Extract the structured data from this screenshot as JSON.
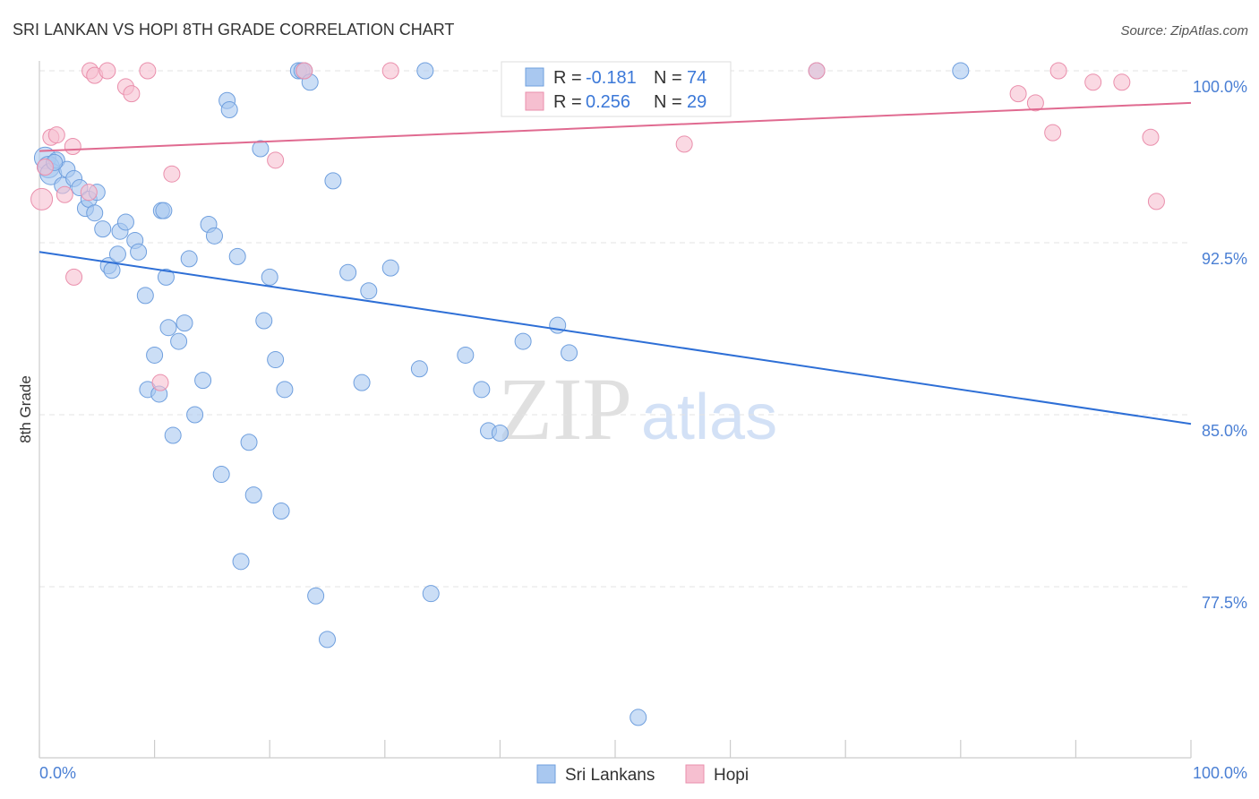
{
  "chart_data": {
    "type": "scatter",
    "title": "SRI LANKAN VS HOPI 8TH GRADE CORRELATION CHART",
    "source": "Source: ZipAtlas.com",
    "xlabel": "",
    "ylabel": "8th Grade",
    "xlim": [
      0,
      100
    ],
    "ylim": [
      70.5,
      101.5
    ],
    "x_tick_labels": [
      "0.0%",
      "100.0%"
    ],
    "y_ticks": [
      {
        "value": 100.0,
        "label": "100.0%"
      },
      {
        "value": 92.5,
        "label": "92.5%"
      },
      {
        "value": 85.0,
        "label": "85.0%"
      },
      {
        "value": 77.5,
        "label": "77.5%"
      }
    ],
    "watermark": {
      "zip": "ZIP",
      "atlas": "atlas"
    },
    "legend": {
      "rows": [
        {
          "series": "Sri Lankans",
          "r_label": "R =",
          "r_value": "-0.181",
          "n_label": "N =",
          "n_value": "74"
        },
        {
          "series": "Hopi",
          "r_label": "R =",
          "r_value": "0.256",
          "n_label": "N =",
          "n_value": "29"
        }
      ]
    },
    "series": [
      {
        "name": "Sri Lankans",
        "color": "#a9c8f0",
        "stroke": "#6f9fde",
        "line_color": "#2e6fd6",
        "trend": {
          "x": [
            0,
            100
          ],
          "y": [
            92.1,
            84.6
          ]
        },
        "points": [
          [
            0.5,
            96.2
          ],
          [
            0.8,
            95.8
          ],
          [
            1.0,
            95.5
          ],
          [
            1.5,
            96.1
          ],
          [
            2.0,
            95.0
          ],
          [
            2.4,
            95.7
          ],
          [
            3.0,
            95.3
          ],
          [
            3.5,
            94.9
          ],
          [
            4.0,
            94.0
          ],
          [
            4.3,
            94.4
          ],
          [
            4.8,
            93.8
          ],
          [
            5.0,
            94.7
          ],
          [
            5.5,
            93.1
          ],
          [
            6.0,
            91.5
          ],
          [
            6.3,
            91.3
          ],
          [
            6.8,
            92.0
          ],
          [
            7.0,
            93.0
          ],
          [
            7.5,
            93.4
          ],
          [
            8.3,
            92.6
          ],
          [
            8.6,
            92.1
          ],
          [
            9.2,
            90.2
          ],
          [
            9.4,
            86.1
          ],
          [
            10.0,
            87.6
          ],
          [
            10.4,
            85.9
          ],
          [
            10.6,
            93.9
          ],
          [
            10.8,
            93.9
          ],
          [
            11.0,
            91.0
          ],
          [
            11.2,
            88.8
          ],
          [
            11.6,
            84.1
          ],
          [
            12.1,
            88.2
          ],
          [
            12.6,
            89.0
          ],
          [
            13.0,
            91.8
          ],
          [
            13.5,
            85.0
          ],
          [
            14.2,
            86.5
          ],
          [
            14.7,
            93.3
          ],
          [
            15.2,
            92.8
          ],
          [
            15.8,
            82.4
          ],
          [
            16.3,
            98.7
          ],
          [
            16.5,
            98.3
          ],
          [
            17.2,
            91.9
          ],
          [
            17.5,
            78.6
          ],
          [
            18.2,
            83.8
          ],
          [
            18.6,
            81.5
          ],
          [
            19.2,
            96.6
          ],
          [
            19.5,
            89.1
          ],
          [
            20.0,
            91.0
          ],
          [
            20.5,
            87.4
          ],
          [
            21.0,
            80.8
          ],
          [
            21.3,
            86.1
          ],
          [
            22.5,
            100.0
          ],
          [
            22.8,
            100.0
          ],
          [
            23.0,
            100.0
          ],
          [
            23.5,
            99.5
          ],
          [
            24.0,
            77.1
          ],
          [
            25.0,
            75.2
          ],
          [
            25.5,
            95.2
          ],
          [
            26.8,
            91.2
          ],
          [
            28.0,
            86.4
          ],
          [
            28.6,
            90.4
          ],
          [
            30.5,
            91.4
          ],
          [
            33.0,
            87.0
          ],
          [
            33.5,
            100.0
          ],
          [
            34.0,
            77.2
          ],
          [
            37.0,
            87.6
          ],
          [
            38.4,
            86.1
          ],
          [
            39.0,
            84.3
          ],
          [
            40.0,
            84.2
          ],
          [
            42.0,
            88.2
          ],
          [
            45.0,
            88.9
          ],
          [
            46.0,
            87.7
          ],
          [
            52.0,
            71.8
          ],
          [
            67.5,
            100.0
          ],
          [
            80.0,
            100.0
          ],
          [
            1.3,
            96.0
          ]
        ]
      },
      {
        "name": "Hopi",
        "color": "#f6bfd0",
        "stroke": "#ea8fac",
        "line_color": "#e06a90",
        "trend": {
          "x": [
            0,
            100
          ],
          "y": [
            96.5,
            98.6
          ]
        },
        "points": [
          [
            0.2,
            94.4
          ],
          [
            0.5,
            95.8
          ],
          [
            1.0,
            97.1
          ],
          [
            1.5,
            97.2
          ],
          [
            2.2,
            94.6
          ],
          [
            2.9,
            96.7
          ],
          [
            3.0,
            91.0
          ],
          [
            4.3,
            94.7
          ],
          [
            4.4,
            100.0
          ],
          [
            4.8,
            99.8
          ],
          [
            5.9,
            100.0
          ],
          [
            7.5,
            99.3
          ],
          [
            8.0,
            99.0
          ],
          [
            9.4,
            100.0
          ],
          [
            10.5,
            86.4
          ],
          [
            11.5,
            95.5
          ],
          [
            20.5,
            96.1
          ],
          [
            23.0,
            100.0
          ],
          [
            30.5,
            100.0
          ],
          [
            56.0,
            96.8
          ],
          [
            67.5,
            100.0
          ],
          [
            85.0,
            99.0
          ],
          [
            86.5,
            98.6
          ],
          [
            88.0,
            97.3
          ],
          [
            88.5,
            100.0
          ],
          [
            91.5,
            99.5
          ],
          [
            94.0,
            99.5
          ],
          [
            96.5,
            97.1
          ],
          [
            97.0,
            94.3
          ]
        ]
      }
    ]
  }
}
